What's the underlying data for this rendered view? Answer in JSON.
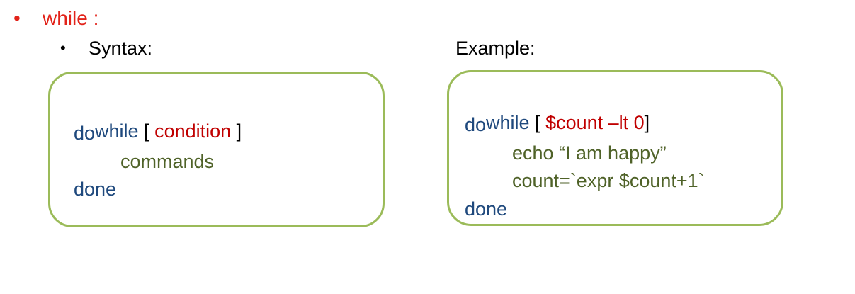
{
  "heading": {
    "bullet": "•",
    "title": "while :"
  },
  "syntax": {
    "bullet": "•",
    "label": "Syntax:",
    "lines": {
      "l1_kw": "while",
      "l1_open": " [ ",
      "l1_cond": "condition",
      "l1_close": " ]",
      "l2": "do",
      "l3": "commands",
      "l4": "done"
    }
  },
  "example": {
    "label": "Example:",
    "lines": {
      "l1_kw": "while",
      "l1_open": " [ ",
      "l1_cond": "$count –lt 0",
      "l1_close": "]",
      "l2": "do",
      "l3": "echo “I am happy”",
      "l4": "count=`expr $count+1`",
      "l5": "done"
    }
  },
  "colors": {
    "heading": "#e2231a",
    "keyword": "#1f497d",
    "condition": "#c00000",
    "command": "#4f6228",
    "box_border": "#9bbb59"
  }
}
